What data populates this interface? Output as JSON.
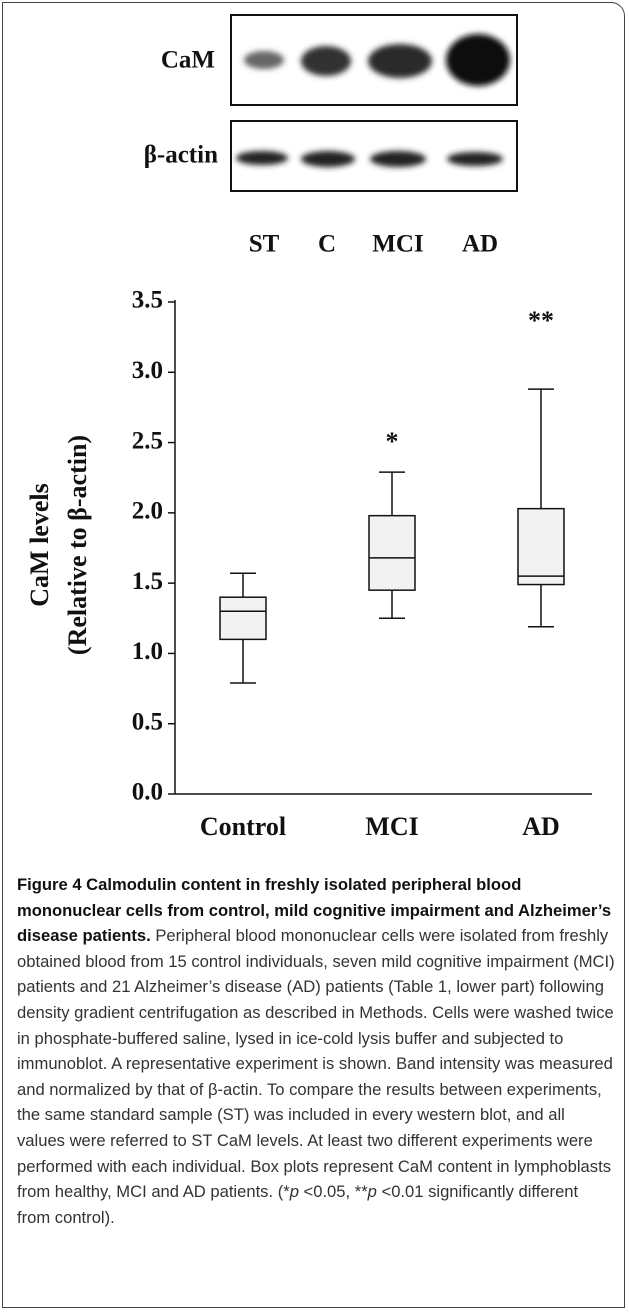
{
  "blot": {
    "rows": [
      "CaM",
      "β-actin"
    ],
    "lanes": [
      "ST",
      "C",
      "MCI",
      "AD"
    ]
  },
  "chart_data": {
    "type": "box",
    "ylabel": [
      "CaM levels",
      "(Relative to β-actin)"
    ],
    "categories": [
      "Control",
      "MCI",
      "AD"
    ],
    "series": [
      {
        "values": [
          {
            "min": 0.79,
            "q1": 1.1,
            "median": 1.3,
            "q3": 1.4,
            "max": 1.57
          },
          {
            "min": 1.25,
            "q1": 1.45,
            "median": 1.68,
            "q3": 1.98,
            "max": 2.29
          },
          {
            "min": 1.19,
            "q1": 1.49,
            "median": 1.55,
            "q3": 2.03,
            "max": 2.88
          }
        ]
      }
    ],
    "annotations": [
      null,
      "*",
      "**"
    ],
    "ylim": [
      0,
      3.5
    ],
    "yticks": [
      {
        "value": 0,
        "label": "0.0"
      },
      {
        "value": 0.5,
        "label": "0.5"
      },
      {
        "value": 1,
        "label": "1.0"
      },
      {
        "value": 1.5,
        "label": "1.5"
      },
      {
        "value": 2,
        "label": "2.0"
      },
      {
        "value": 2.5,
        "label": "2.5"
      },
      {
        "value": 3,
        "label": "3.0"
      },
      {
        "value": 3.5,
        "label": "3.5"
      }
    ]
  },
  "caption": {
    "title": "Figure 4 Calmodulin content in freshly isolated peripheral blood mononuclear cells from control, mild cognitive impairment and Alzheimer’s disease patients.",
    "body": [
      " Peripheral blood mononuclear cells were isolated from freshly obtained blood from 15 control individuals, seven mild cognitive impairment (MCI) patients and 21 Alzheimer’s disease (AD) patients (Table 1, lower part) following density gradient centrifugation as described in Methods. Cells were washed twice in phosphate-buffered saline, lysed in ice-cold lysis buffer and subjected to immunoblot. A representative experiment is shown. Band intensity was measured and normalized by that of β-actin. To compare the results between experiments, the same standard sample (ST) was included in every western blot, and all values were referred to ST CaM levels. At least two different experiments were performed with each individual. Box plots represent CaM content in lymphoblasts from healthy, MCI and AD patients. (*",
      "p",
      " <0.05, **",
      "p",
      " <0.01 significantly different from control)."
    ]
  }
}
